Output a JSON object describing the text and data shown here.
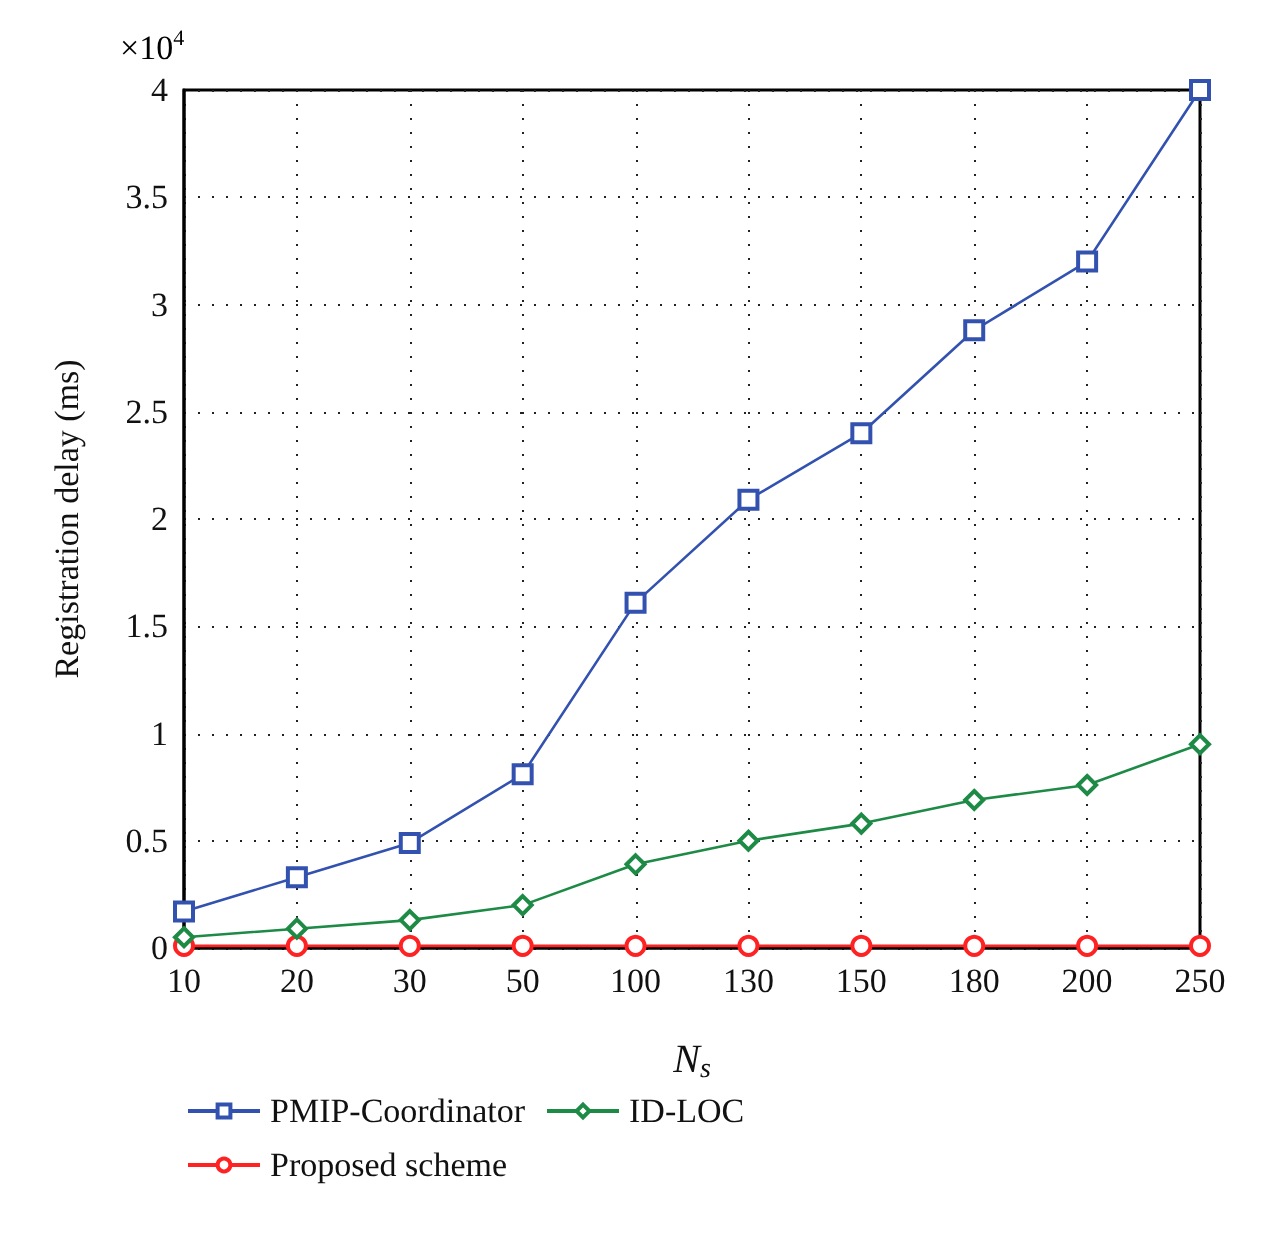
{
  "chart_data": {
    "type": "line",
    "categories": [
      "10",
      "20",
      "30",
      "50",
      "100",
      "130",
      "150",
      "180",
      "200",
      "250"
    ],
    "series": [
      {
        "name": "PMIP-Coordinator",
        "color": "#3352b0",
        "marker": "square",
        "values": [
          0.17,
          0.33,
          0.49,
          0.81,
          1.61,
          2.09,
          2.4,
          2.88,
          3.2,
          4.0
        ]
      },
      {
        "name": "ID-LOC",
        "color": "#1d8a45",
        "marker": "diamond",
        "values": [
          0.05,
          0.09,
          0.13,
          0.2,
          0.39,
          0.5,
          0.58,
          0.69,
          0.76,
          0.95
        ]
      },
      {
        "name": "Proposed scheme",
        "color": "#ff2222",
        "marker": "circle",
        "values": [
          0.01,
          0.01,
          0.01,
          0.01,
          0.01,
          0.01,
          0.01,
          0.01,
          0.01,
          0.01
        ]
      }
    ],
    "xlabel": "N$_{s}$",
    "ylabel": "Registration delay (ms)",
    "annotations": [
      "×10$^{4}$"
    ],
    "ylim": [
      0,
      4
    ],
    "yticks": [
      0,
      0.5,
      1,
      1.5,
      2,
      2.5,
      3,
      3.5,
      4
    ],
    "grid": true,
    "legend": "bottom",
    "line_style": "solid"
  }
}
